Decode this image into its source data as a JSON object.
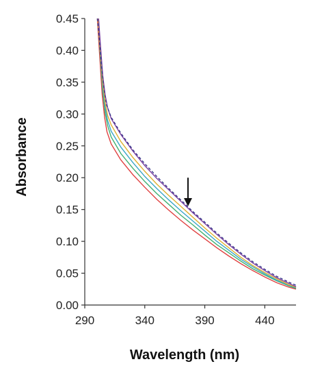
{
  "chart_data": {
    "type": "line",
    "title": "",
    "xlabel": "Wavelength (nm)",
    "ylabel": "Absorbance",
    "xlim": [
      290,
      466
    ],
    "ylim": [
      0,
      0.45
    ],
    "xticks": [
      290,
      340,
      390,
      440
    ],
    "yticks": [
      "0.00",
      "0.05",
      "0.10",
      "0.15",
      "0.20",
      "0.25",
      "0.30",
      "0.35",
      "0.40",
      "0.45"
    ],
    "grid": false,
    "legend": "none",
    "annotation": {
      "type": "arrow-down",
      "x": 376,
      "y_from": 0.2,
      "y_to": 0.155
    },
    "series": [
      {
        "color": "#3a3a8a",
        "dash": "4,3",
        "points": [
          [
            300.5,
            0.45
          ],
          [
            302,
            0.42
          ],
          [
            304,
            0.375
          ],
          [
            306,
            0.34
          ],
          [
            308,
            0.315
          ],
          [
            312,
            0.295
          ],
          [
            320,
            0.27
          ],
          [
            330,
            0.244
          ],
          [
            340,
            0.222
          ],
          [
            350,
            0.202
          ],
          [
            360,
            0.183
          ],
          [
            370,
            0.165
          ],
          [
            380,
            0.147
          ],
          [
            390,
            0.13
          ],
          [
            400,
            0.113
          ],
          [
            410,
            0.097
          ],
          [
            420,
            0.082
          ],
          [
            430,
            0.068
          ],
          [
            440,
            0.056
          ],
          [
            450,
            0.045
          ],
          [
            460,
            0.036
          ],
          [
            466,
            0.031
          ]
        ]
      },
      {
        "color": "#7b3fa0",
        "dash": "",
        "points": [
          [
            301.5,
            0.45
          ],
          [
            303,
            0.41
          ],
          [
            305,
            0.36
          ],
          [
            307,
            0.33
          ],
          [
            309,
            0.31
          ],
          [
            312,
            0.293
          ],
          [
            320,
            0.268
          ],
          [
            330,
            0.242
          ],
          [
            340,
            0.219
          ],
          [
            350,
            0.199
          ],
          [
            360,
            0.181
          ],
          [
            370,
            0.163
          ],
          [
            380,
            0.145
          ],
          [
            390,
            0.128
          ],
          [
            400,
            0.111
          ],
          [
            410,
            0.095
          ],
          [
            420,
            0.08
          ],
          [
            430,
            0.066
          ],
          [
            440,
            0.054
          ],
          [
            450,
            0.043
          ],
          [
            460,
            0.034
          ],
          [
            466,
            0.029
          ]
        ]
      },
      {
        "color": "#e0b030",
        "dash": "",
        "points": [
          [
            301,
            0.45
          ],
          [
            303,
            0.4
          ],
          [
            305,
            0.35
          ],
          [
            307,
            0.318
          ],
          [
            309,
            0.298
          ],
          [
            312,
            0.283
          ],
          [
            320,
            0.257
          ],
          [
            330,
            0.232
          ],
          [
            340,
            0.21
          ],
          [
            350,
            0.19
          ],
          [
            360,
            0.172
          ],
          [
            370,
            0.155
          ],
          [
            380,
            0.138
          ],
          [
            390,
            0.121
          ],
          [
            400,
            0.105
          ],
          [
            410,
            0.09
          ],
          [
            420,
            0.075
          ],
          [
            430,
            0.062
          ],
          [
            440,
            0.051
          ],
          [
            450,
            0.041
          ],
          [
            460,
            0.032
          ],
          [
            466,
            0.028
          ]
        ]
      },
      {
        "color": "#3aa6c8",
        "dash": "",
        "points": [
          [
            301,
            0.45
          ],
          [
            303,
            0.395
          ],
          [
            305,
            0.342
          ],
          [
            307,
            0.31
          ],
          [
            309,
            0.29
          ],
          [
            312,
            0.273
          ],
          [
            320,
            0.248
          ],
          [
            330,
            0.224
          ],
          [
            340,
            0.202
          ],
          [
            350,
            0.183
          ],
          [
            360,
            0.165
          ],
          [
            370,
            0.148
          ],
          [
            380,
            0.132
          ],
          [
            390,
            0.116
          ],
          [
            400,
            0.1
          ],
          [
            410,
            0.086
          ],
          [
            420,
            0.072
          ],
          [
            430,
            0.06
          ],
          [
            440,
            0.049
          ],
          [
            450,
            0.039
          ],
          [
            460,
            0.031
          ],
          [
            466,
            0.027
          ]
        ]
      },
      {
        "color": "#40b070",
        "dash": "",
        "points": [
          [
            301,
            0.45
          ],
          [
            303,
            0.39
          ],
          [
            305,
            0.335
          ],
          [
            307,
            0.302
          ],
          [
            309,
            0.282
          ],
          [
            312,
            0.264
          ],
          [
            320,
            0.238
          ],
          [
            330,
            0.215
          ],
          [
            340,
            0.194
          ],
          [
            350,
            0.175
          ],
          [
            360,
            0.158
          ],
          [
            370,
            0.141
          ],
          [
            380,
            0.126
          ],
          [
            390,
            0.11
          ],
          [
            400,
            0.095
          ],
          [
            410,
            0.082
          ],
          [
            420,
            0.069
          ],
          [
            430,
            0.057
          ],
          [
            440,
            0.047
          ],
          [
            450,
            0.038
          ],
          [
            460,
            0.03
          ],
          [
            466,
            0.026
          ]
        ]
      },
      {
        "color": "#e04040",
        "dash": "",
        "points": [
          [
            300.5,
            0.45
          ],
          [
            302.5,
            0.39
          ],
          [
            304.5,
            0.33
          ],
          [
            306.5,
            0.295
          ],
          [
            308.5,
            0.272
          ],
          [
            312,
            0.253
          ],
          [
            320,
            0.228
          ],
          [
            330,
            0.205
          ],
          [
            340,
            0.185
          ],
          [
            350,
            0.166
          ],
          [
            360,
            0.149
          ],
          [
            370,
            0.133
          ],
          [
            380,
            0.118
          ],
          [
            390,
            0.104
          ],
          [
            400,
            0.09
          ],
          [
            410,
            0.077
          ],
          [
            420,
            0.065
          ],
          [
            430,
            0.054
          ],
          [
            440,
            0.044
          ],
          [
            450,
            0.035
          ],
          [
            460,
            0.028
          ],
          [
            466,
            0.025
          ]
        ]
      }
    ]
  }
}
